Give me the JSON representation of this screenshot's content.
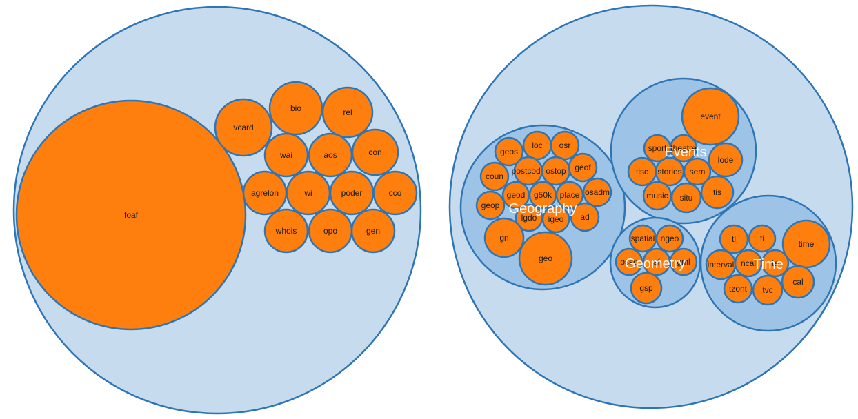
{
  "diagram": {
    "colors": {
      "outer_fill": "#c6dbee",
      "group_fill": "#9dc3e6",
      "leaf_fill": "#fe7f0e",
      "stroke": "#2e75b6"
    },
    "left_pack": {
      "leaves": [
        "foaf",
        "vcard",
        "bio",
        "rel",
        "wai",
        "aos",
        "con",
        "agrelon",
        "wi",
        "poder",
        "cco",
        "whois",
        "opo",
        "gen"
      ]
    },
    "right_pack": {
      "groups": [
        {
          "label": "Geography",
          "leaves": [
            "geos",
            "loc",
            "osr",
            "coun",
            "postcode",
            "ostop",
            "geof",
            "geod",
            "g50k",
            "place",
            "osadm",
            "geop",
            "lgdo",
            "igeo",
            "ad",
            "gn",
            "geo"
          ]
        },
        {
          "label": "Events",
          "leaves": [
            "event",
            "sport",
            "theatre",
            "lode",
            "tisc",
            "stories",
            "sem",
            "music",
            "situ",
            "tis"
          ]
        },
        {
          "label": "Geometry",
          "leaves": [
            "spatial",
            "ngeo",
            "ossp",
            "sf",
            "gml",
            "gsp"
          ]
        },
        {
          "label": "Time",
          "leaves": [
            "tl",
            "ti",
            "time",
            "interval",
            "ncal",
            "te",
            "tzont",
            "tvc",
            "cal"
          ]
        }
      ]
    }
  }
}
